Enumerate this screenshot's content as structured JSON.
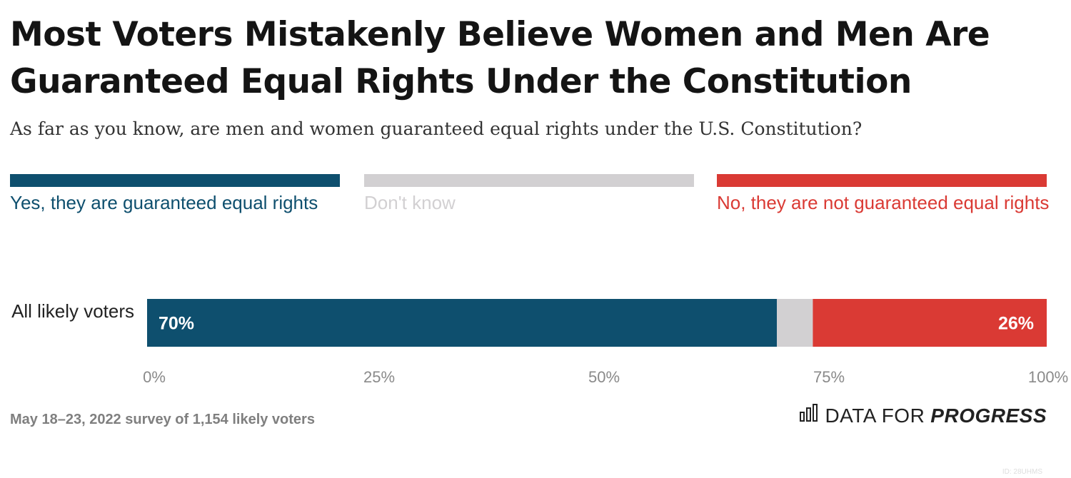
{
  "title": "Most Voters Mistakenly Believe Women and Men Are Guaranteed Equal Rights Under the Constitution",
  "subtitle": "As far as you know, are men and women guaranteed equal rights under the U.S. Constitution?",
  "legend": [
    {
      "label": "Yes, they are guaranteed equal rights",
      "color": "#0e4f6e"
    },
    {
      "label": "Don't know",
      "color": "#d2d0d2"
    },
    {
      "label": "No, they are not guaranteed equal rights",
      "color": "#da3a34"
    }
  ],
  "footer": "May 18–23, 2022 survey of 1,154 likely voters",
  "logo": {
    "part1": "DATA FOR",
    "part2": "PROGRESS"
  },
  "watermark": "ID: 28UHMS",
  "chart_data": {
    "type": "bar",
    "orientation": "horizontal",
    "stacked": true,
    "categories": [
      "All likely voters"
    ],
    "series": [
      {
        "name": "Yes, they are guaranteed equal rights",
        "values": [
          70
        ],
        "color": "#0e4f6e",
        "label": "70%"
      },
      {
        "name": "Don't know",
        "values": [
          4
        ],
        "color": "#d2d0d2",
        "label": ""
      },
      {
        "name": "No, they are not guaranteed equal rights",
        "values": [
          26
        ],
        "color": "#da3a34",
        "label": "26%"
      }
    ],
    "xlim": [
      0,
      100
    ],
    "xticks": [
      "0%",
      "25%",
      "50%",
      "75%",
      "100%"
    ],
    "grid": false,
    "legend_position": "top"
  }
}
